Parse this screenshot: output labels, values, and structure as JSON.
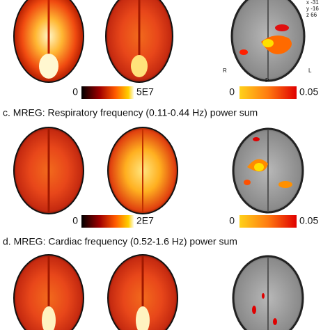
{
  "panel_b": {
    "coords": [
      "x -31",
      "y -16",
      "z 66"
    ],
    "orientation": {
      "right": "R",
      "posterior": "P",
      "left": "L"
    },
    "power_scale": {
      "min": "0",
      "max": "5E7"
    },
    "p_scale": {
      "min": "0",
      "max": "0.05"
    }
  },
  "panel_c": {
    "title": "c. MREG: Respiratory frequency (0.11-0.44 Hz) power sum",
    "power_scale": {
      "min": "0",
      "max": "2E7"
    },
    "p_scale": {
      "min": "0",
      "max": "0.05"
    }
  },
  "panel_d": {
    "title": "d. MREG: Cardiac frequency (0.52-1.6 Hz) power sum"
  }
}
